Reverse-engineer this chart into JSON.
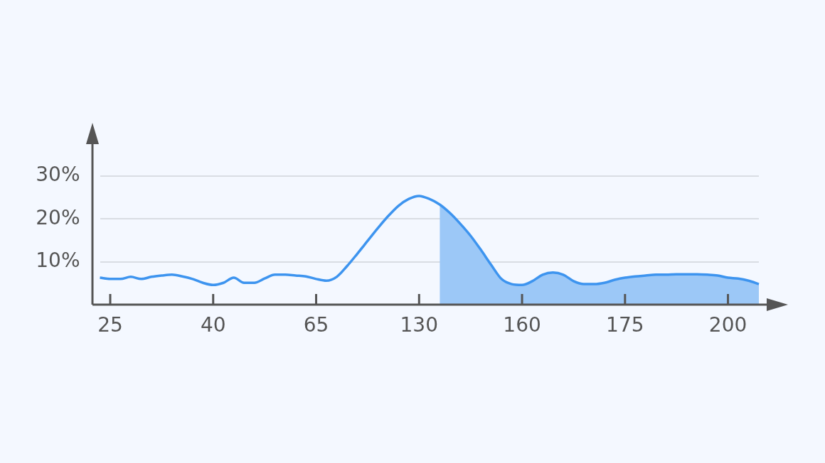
{
  "chart_data": {
    "type": "line",
    "categories": [
      null,
      "25",
      null,
      null,
      null,
      null,
      null,
      null,
      null,
      null,
      null,
      "40",
      null,
      null,
      null,
      null,
      null,
      null,
      null,
      null,
      null,
      "65",
      null,
      null,
      null,
      null,
      null,
      null,
      null,
      null,
      null,
      "130",
      null,
      null,
      null,
      null,
      null,
      null,
      null,
      null,
      null,
      "160",
      null,
      null,
      null,
      null,
      null,
      null,
      null,
      null,
      null,
      "175",
      null,
      null,
      null,
      null,
      null,
      null,
      null,
      null,
      null,
      "200",
      null,
      null,
      null
    ],
    "series": [
      {
        "type": "area",
        "color": "#9cc8f7",
        "values": [
          null,
          null,
          null,
          null,
          null,
          null,
          null,
          null,
          null,
          null,
          null,
          null,
          null,
          null,
          null,
          null,
          null,
          null,
          null,
          null,
          null,
          null,
          null,
          null,
          null,
          null,
          null,
          null,
          null,
          null,
          null,
          null,
          null,
          23.4,
          21.4,
          18.9,
          16.1,
          12.8,
          9.3,
          6.0,
          4.8,
          4.6,
          5.5,
          7.0,
          7.5,
          7.0,
          5.5,
          4.8,
          4.8,
          5.1,
          5.8,
          6.3,
          6.6,
          6.8,
          7.0,
          7.0,
          7.1,
          7.1,
          7.1,
          7.0,
          6.8,
          6.3,
          6.1,
          5.6,
          4.8
        ]
      },
      {
        "type": "line",
        "color": "#3d94ef",
        "values": [
          6.3,
          6.0,
          6.0,
          6.5,
          6.0,
          6.5,
          6.8,
          7.0,
          6.6,
          6.0,
          5.1,
          4.6,
          5.1,
          6.3,
          5.1,
          5.1,
          6.1,
          7.0,
          7.0,
          6.8,
          6.6,
          6.0,
          5.6,
          6.5,
          9.0,
          11.9,
          14.9,
          17.9,
          20.7,
          23.1,
          24.7,
          25.4,
          24.7,
          23.4,
          21.4,
          18.9,
          16.1,
          12.8,
          9.3,
          6.0,
          4.8,
          4.6,
          5.5,
          7.0,
          7.5,
          7.0,
          5.5,
          4.8,
          4.8,
          5.1,
          5.8,
          6.3,
          6.6,
          6.8,
          7.0,
          7.0,
          7.1,
          7.1,
          7.1,
          7.0,
          6.8,
          6.3,
          6.1,
          5.6,
          4.8
        ]
      }
    ],
    "ylim": [
      0,
      38
    ],
    "yticks": [
      {
        "value": 10,
        "label": "10%"
      },
      {
        "value": 20,
        "label": "20%"
      },
      {
        "value": 30,
        "label": "30%"
      }
    ],
    "grid": "y",
    "legend": false,
    "marker": "none"
  }
}
